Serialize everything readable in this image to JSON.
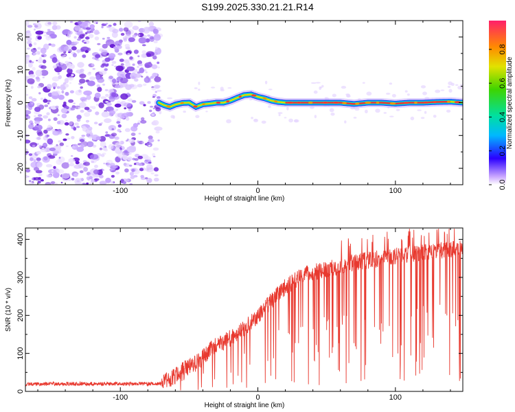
{
  "title": "S199.2025.330.21.21.R14",
  "colors": {
    "trace": "#e8392f",
    "spectral_core": "#e8353a",
    "scatter": "#7b2fe0",
    "axis": "#000000"
  },
  "chart_data": [
    {
      "type": "heatmap",
      "xlabel": "Height of straight line (km)",
      "ylabel": "Frequency (Hz)",
      "xlim": [
        -169,
        149
      ],
      "ylim": [
        -25,
        25
      ],
      "xticks": [
        -100,
        0,
        100
      ],
      "xtick_labels": [
        "-100",
        "0",
        "100"
      ],
      "yticks": [
        20,
        10,
        0,
        -10,
        -20
      ],
      "ytick_labels": [
        "20",
        "10",
        "0",
        "-10",
        "-20"
      ],
      "noise_region_x": [
        -169,
        -72
      ],
      "signal_path": {
        "x": [
          -72,
          -68,
          -64,
          -60,
          -55,
          -50,
          -45,
          -40,
          -35,
          -30,
          -25,
          -20,
          -15,
          -10,
          -5,
          0,
          5,
          10,
          15,
          20,
          25,
          40,
          60,
          70,
          80,
          90,
          100,
          110,
          120,
          130,
          140,
          149
        ],
        "y": [
          0,
          -0.8,
          -1.3,
          -0.6,
          -0.1,
          0,
          -1.3,
          -0.5,
          -0.3,
          0,
          0,
          0.6,
          1.5,
          2.3,
          2.5,
          1.8,
          1.3,
          0.6,
          0.2,
          0,
          0,
          0,
          0,
          -0.4,
          0,
          0,
          -0.3,
          0,
          0,
          0.2,
          0.3,
          0
        ]
      },
      "colorbar": {
        "label": "Normalized spectral amplitude",
        "range": [
          0,
          0.97
        ],
        "ticks": [
          0.0,
          0.2,
          0.4,
          0.6,
          0.8
        ],
        "tick_labels": [
          "0.0",
          "0.2",
          "0.4",
          "0.6",
          "0.8"
        ]
      }
    },
    {
      "type": "line",
      "xlabel": "Height of straight line (km)",
      "ylabel": "SNR (10 * v/v)",
      "xlim": [
        -169,
        149
      ],
      "ylim": [
        0,
        430
      ],
      "xticks": [
        -100,
        0,
        100
      ],
      "xtick_labels": [
        "-100",
        "0",
        "100"
      ],
      "yticks": [
        0,
        100,
        200,
        300,
        400
      ],
      "ytick_labels": [
        "0",
        "100",
        "200",
        "300",
        "400"
      ],
      "envelope": {
        "x": [
          -169,
          -150,
          -100,
          -70,
          -65,
          -55,
          -45,
          -40,
          -35,
          -30,
          -20,
          -10,
          0,
          10,
          20,
          30,
          40,
          50,
          60,
          70,
          80,
          100,
          120,
          140,
          149
        ],
        "y": [
          18,
          20,
          20,
          20,
          30,
          55,
          75,
          90,
          110,
          120,
          140,
          165,
          200,
          240,
          275,
          300,
          315,
          320,
          330,
          340,
          345,
          355,
          365,
          375,
          375
        ]
      }
    }
  ]
}
